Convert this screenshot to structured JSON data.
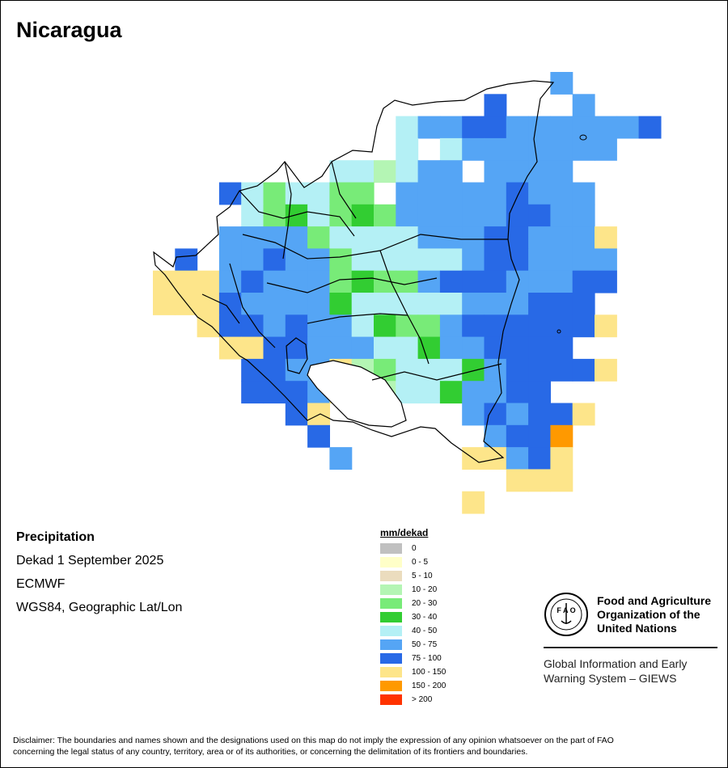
{
  "title": "Nicaragua",
  "info": {
    "variable": "Precipitation",
    "period": "Dekad 1 September 2025",
    "source": "ECMWF",
    "projection": "WGS84, Geographic Lat/Lon"
  },
  "legend": {
    "title": "mm/dekad",
    "classes": [
      {
        "label": "0",
        "color": "#c0c0c0"
      },
      {
        "label": "0 - 5",
        "color": "#ffffc8"
      },
      {
        "label": "5 - 10",
        "color": "#ebdcbe"
      },
      {
        "label": "10 - 20",
        "color": "#b4f5b4"
      },
      {
        "label": "20 - 30",
        "color": "#78eb78"
      },
      {
        "label": "30 - 40",
        "color": "#32cd32"
      },
      {
        "label": "40 - 50",
        "color": "#b4f0f5"
      },
      {
        "label": "50 - 75",
        "color": "#55a5f5"
      },
      {
        "label": "75 - 100",
        "color": "#2869e6"
      },
      {
        "label": "100 - 150",
        "color": "#fde58a"
      },
      {
        "label": "150 - 200",
        "color": "#ff9900"
      },
      {
        "label": "> 200",
        "color": "#ff3300"
      }
    ]
  },
  "fao": {
    "org_line1": "Food and Agriculture",
    "org_line2": "Organization of the",
    "org_line3": "United Nations",
    "giews_line1": "Global Information and Early",
    "giews_line2": "Warning System – GIEWS"
  },
  "disclaimer_line1": "Disclaimer: The boundaries and names shown and the designations used on this map do not imply the expression of any opinion whatsoever on the part of FAO",
  "disclaimer_line2": "concerning the legal status of any country, territory, area or of its authorities, or concerning the delimitation of its frontiers and boundaries.",
  "grid": {
    "rows": [
      "..................L.....",
      "...............D...L....",
      "...........SBBCCBBBBBBC.",
      "...........E.SBBBBBBB...",
      "........ESUSBB.BBBB.....",
      "...CSFSSFF.BBBBBCBBB....",
      "....SFFSFFFBBBBBCCBB....",
      "...BBBBFSSSSBBBCCBBBY...",
      ".C.BBCBBFSSSSSBCCBBBB...",
      "YYYBCBBBFFFFBCCCBBBCC...",
      "YYYCBBBBFSSSSSBBBCCC....",
      "..YCCBCBBSFFFBCCCCCCY...",
      "...YYCCBBBSSFBBCCCC.....",
      "....CCBBYUFSSSFBCCCCY...",
      "....CCCBYUUSSFBBCC......",
      "......CY......BCBCCY....",
      ".......C.......BCCO.....",
      "........B.....YYBCY.....",
      "................YYY.....",
      "..............Y........."
    ]
  },
  "chart_data": {
    "type": "heatmap",
    "title": "Nicaragua",
    "variable": "Precipitation",
    "units": "mm/dekad",
    "period": "Dekad 1 September 2025",
    "source": "ECMWF",
    "classes": [
      "0",
      "0 - 5",
      "5 - 10",
      "10 - 20",
      "20 - 30",
      "30 - 40",
      "40 - 50",
      "50 - 75",
      "75 - 100",
      "100 - 150",
      "150 - 200",
      "> 200"
    ]
  }
}
